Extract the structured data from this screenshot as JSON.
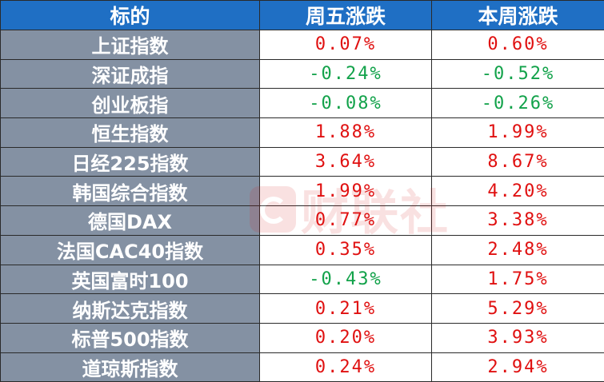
{
  "table": {
    "headers": [
      "标的",
      "周五涨跌",
      "本周涨跌"
    ],
    "rows": [
      {
        "name": "上证指数",
        "friday": "0.07%",
        "week": "0.60%",
        "friday_color": "#e01010",
        "week_color": "#e01010"
      },
      {
        "name": "深证成指",
        "friday": "-0.24%",
        "week": "-0.52%",
        "friday_color": "#12a24a",
        "week_color": "#12a24a"
      },
      {
        "name": "创业板指",
        "friday": "-0.08%",
        "week": "-0.26%",
        "friday_color": "#12a24a",
        "week_color": "#12a24a"
      },
      {
        "name": "恒生指数",
        "friday": "1.88%",
        "week": "1.99%",
        "friday_color": "#e01010",
        "week_color": "#e01010"
      },
      {
        "name": "日经225指数",
        "friday": "3.64%",
        "week": "8.67%",
        "friday_color": "#e01010",
        "week_color": "#e01010"
      },
      {
        "name": "韩国综合指数",
        "friday": "1.99%",
        "week": "4.20%",
        "friday_color": "#e01010",
        "week_color": "#e01010"
      },
      {
        "name": "德国DAX",
        "friday": "0.77%",
        "week": "3.38%",
        "friday_color": "#e01010",
        "week_color": "#e01010"
      },
      {
        "name": "法国CAC40指数",
        "friday": "0.35%",
        "week": "2.48%",
        "friday_color": "#e01010",
        "week_color": "#e01010"
      },
      {
        "name": "英国富时100",
        "friday": "-0.43%",
        "week": "1.75%",
        "friday_color": "#12a24a",
        "week_color": "#e01010"
      },
      {
        "name": "纳斯达克指数",
        "friday": "0.21%",
        "week": "5.29%",
        "friday_color": "#e01010",
        "week_color": "#e01010"
      },
      {
        "name": "标普500指数",
        "friday": "0.20%",
        "week": "3.93%",
        "friday_color": "#e01010",
        "week_color": "#e01010"
      },
      {
        "name": "道琼斯指数",
        "friday": "0.24%",
        "week": "2.94%",
        "friday_color": "#e01010",
        "week_color": "#e01010"
      }
    ]
  },
  "watermark": {
    "text": "财联社",
    "icon": "cls-logo-icon"
  },
  "colors": {
    "header_bg": "#1f6fc4",
    "name_bg": "#8491a3",
    "up": "#e01010",
    "down": "#12a24a"
  }
}
